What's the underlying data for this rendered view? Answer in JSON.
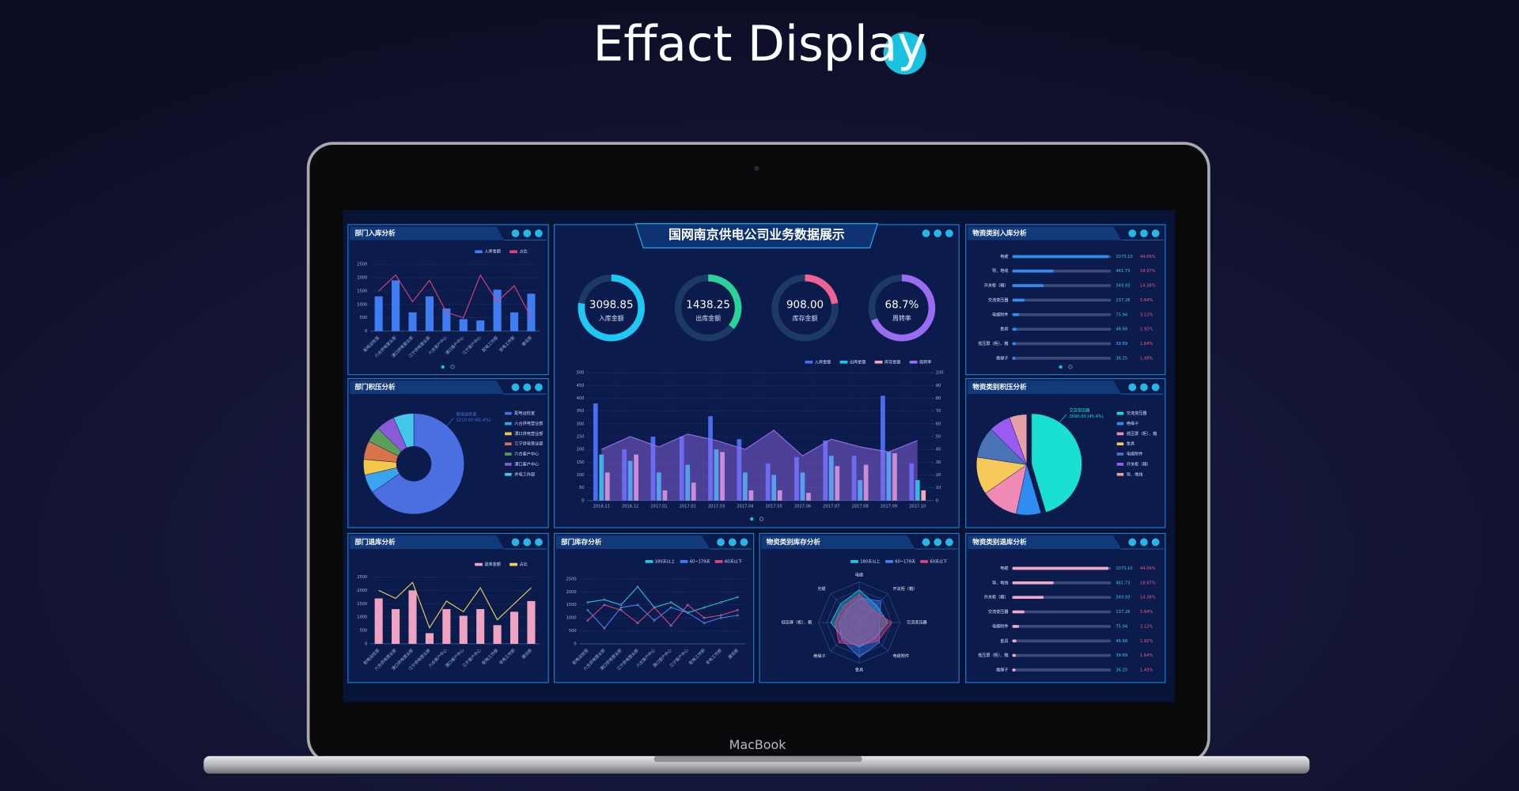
{
  "page": {
    "title": "Effact Display",
    "laptop_label": "MacBook"
  },
  "dashboard": {
    "title": "国网南京供电公司业务数据展示"
  },
  "chart_data": [
    {
      "type": "bar_line",
      "title": "部门入库分析",
      "categories": [
        "配电运检室",
        "六合供电营业部",
        "溧口供电营业部",
        "江宁供电营业部",
        "六合客户中心",
        "溧口客户中心",
        "江宁客户中心",
        "配电工作部",
        "变电工作部",
        "建设部"
      ],
      "series": [
        {
          "name": "入库金额",
          "color": "#3f7ef2",
          "kind": "bar",
          "values": [
            1300,
            1900,
            700,
            1300,
            850,
            450,
            400,
            1550,
            700,
            1400
          ]
        },
        {
          "name": "占比",
          "color": "#e2407a",
          "kind": "line",
          "values": [
            1500,
            2100,
            1100,
            1900,
            700,
            500,
            2100,
            1100,
            1700,
            500
          ]
        }
      ],
      "ylim": [
        0,
        2500
      ],
      "yticks": [
        0,
        500,
        1000,
        1500,
        2000,
        2500
      ]
    },
    {
      "type": "donut",
      "title": "部门积压分析",
      "categories": [
        "配电运检室",
        "六合供电营业部",
        "溧口供电营业部",
        "江宁供电营业部",
        "六合客户中心",
        "溧口客户中心",
        "并电工作部"
      ],
      "values": [
        65.4,
        6,
        5,
        6,
        5,
        6,
        6.6
      ],
      "colors": [
        "#4b6fe0",
        "#3aa3f0",
        "#f3c84a",
        "#d8734c",
        "#5aa05a",
        "#8a5bd8",
        "#45c7ec"
      ],
      "annotation": [
        "配电运检室",
        "5210.00 (65.4%)"
      ]
    },
    {
      "type": "bar_line",
      "title": "部门退库分析",
      "categories": [
        "配电运检室",
        "六合供电营业部",
        "溧口供电营业部",
        "江宁供电营业部",
        "六合客户中心",
        "溧口客户中心",
        "江宁客户中心",
        "配电工作部",
        "变电工作部",
        "建设部"
      ],
      "series": [
        {
          "name": "退库金额",
          "color": "#f0a3c0",
          "kind": "bar",
          "values": [
            1700,
            1300,
            2000,
            400,
            1300,
            1050,
            1300,
            700,
            1200,
            1600
          ]
        },
        {
          "name": "占比",
          "color": "#f2d45a",
          "kind": "line",
          "values": [
            2000,
            1700,
            2300,
            600,
            1600,
            1200,
            2100,
            900,
            1500,
            2100
          ]
        }
      ],
      "ylim": [
        0,
        2500
      ],
      "yticks": [
        0,
        500,
        1000,
        1500,
        2000,
        2500
      ]
    },
    {
      "type": "gauge",
      "categories": [
        "入库金额",
        "出库金额",
        "库存金额",
        "周转率"
      ],
      "values": [
        3098.85,
        1438.25,
        908.0,
        68.7
      ],
      "value_labels": [
        "3098.85",
        "1438.25",
        "908.00",
        "68.7%"
      ],
      "lims": [
        [
          0,
          4000
        ],
        [
          0,
          4000
        ],
        [
          0,
          4000
        ],
        [
          0,
          100
        ]
      ],
      "colors": [
        "#1ec8f2",
        "#2ad39a",
        "#f06292",
        "#9a6cf2"
      ]
    },
    {
      "type": "bar_line",
      "categories": [
        "2016.11",
        "2016.12",
        "2017.01",
        "2017.02",
        "2017.03",
        "2017.04",
        "2017.05",
        "2017.06",
        "2017.07",
        "2017.08",
        "2017.09",
        "2017.10"
      ],
      "series": [
        {
          "name": "入库金额",
          "color": "#4a6cf0",
          "kind": "bar",
          "values": [
            380,
            200,
            250,
            250,
            330,
            240,
            145,
            170,
            235,
            175,
            410,
            145
          ]
        },
        {
          "name": "出库金额",
          "color": "#1fc9e6",
          "kind": "bar",
          "values": [
            180,
            155,
            110,
            140,
            200,
            110,
            100,
            110,
            175,
            80,
            190,
            80
          ]
        },
        {
          "name": "库存金额",
          "color": "#f2a6bd",
          "kind": "bar",
          "values": [
            110,
            180,
            40,
            70,
            190,
            40,
            40,
            30,
            135,
            140,
            185,
            40
          ]
        },
        {
          "name": "周转率",
          "color": "#9a6cf2",
          "kind": "line",
          "axis": "y2",
          "area": true,
          "values": [
            40,
            50,
            42,
            52,
            47,
            40,
            55,
            35,
            48,
            42,
            38,
            47
          ]
        }
      ],
      "ylim": [
        0,
        500
      ],
      "yticks": [
        0,
        50,
        100,
        150,
        200,
        250,
        300,
        350,
        400,
        450,
        500
      ],
      "y2lim": [
        0,
        100
      ],
      "y2ticks": [
        0,
        10,
        20,
        30,
        40,
        50,
        60,
        70,
        80,
        90,
        100
      ]
    },
    {
      "type": "line",
      "title": "部门库存分析",
      "categories": [
        "配电运检室",
        "六合供电营业部",
        "溧口供电营业部",
        "江宁供电营业部",
        "六合客户中心",
        "溧口客户中心",
        "江宁客户中心",
        "配电工作部",
        "变电工作部",
        "建设部"
      ],
      "series": [
        {
          "name": "180天以上",
          "color": "#1fc9e6",
          "kind": "line",
          "values": [
            1600,
            1700,
            1500,
            2200,
            1400,
            1600,
            1200,
            1400,
            1600,
            1800
          ]
        },
        {
          "name": "60~179天",
          "color": "#3f7ef2",
          "kind": "line",
          "values": [
            1300,
            600,
            1400,
            1500,
            900,
            1400,
            1200,
            800,
            1000,
            1100
          ]
        },
        {
          "name": "60天以下",
          "color": "#e2407a",
          "kind": "line",
          "values": [
            900,
            1500,
            1300,
            800,
            1400,
            700,
            1500,
            1000,
            1100,
            1300
          ]
        }
      ],
      "ylim": [
        0,
        2500
      ],
      "yticks": [
        0,
        500,
        1000,
        1500,
        2000,
        2500
      ]
    },
    {
      "type": "radar",
      "title": "物资类别库存分析",
      "categories": [
        "电缆",
        "开关柜（箱）",
        "交流变压器",
        "电缆附件",
        "金具",
        "绝缘子",
        "低压屏（柜）、箱",
        "光缆"
      ],
      "series": [
        {
          "name": "180天以上",
          "color": "#1fc9e6",
          "values": [
            80,
            60,
            70,
            55,
            60,
            55,
            70,
            65
          ]
        },
        {
          "name": "60~179天",
          "color": "#3f7ef2",
          "values": [
            60,
            75,
            50,
            70,
            85,
            60,
            50,
            45
          ]
        },
        {
          "name": "60天以下",
          "color": "#e2407a",
          "values": [
            70,
            45,
            80,
            65,
            55,
            70,
            60,
            55
          ]
        }
      ],
      "rlim": [
        0,
        100
      ]
    },
    {
      "type": "hbar",
      "title": "物资类别入库分析",
      "categories": [
        "电缆",
        "导、地线",
        "开关柜（箱）",
        "交流变压器",
        "电缆附件",
        "金具",
        "低压屏（柜）、箱",
        "绝缘子"
      ],
      "values": [
        1073.1,
        461.73,
        349.93,
        137.28,
        75.94,
        46.68,
        39.89,
        36.25
      ],
      "value_labels": [
        "1073.10",
        "461.73",
        "349.93",
        "137.28",
        "75.94",
        "46.68",
        "39.89",
        "36.25"
      ],
      "shares": [
        44.09,
        18.97,
        14.38,
        5.64,
        3.12,
        1.92,
        1.64,
        1.49
      ],
      "share_labels": [
        "44.09%",
        "18.97%",
        "14.38%",
        "5.64%",
        "3.12%",
        "1.92%",
        "1.64%",
        "1.49%"
      ],
      "xlim": [
        0,
        1100
      ],
      "color": "#2f8cf0"
    },
    {
      "type": "pie",
      "title": "物资类别积压分析",
      "categories": [
        "交流变压器",
        "绝缘子",
        "低压屏（柜）、箱",
        "金具",
        "电缆附件",
        "开关柜（箱）",
        "导、地线"
      ],
      "values": [
        45.4,
        8,
        12,
        12,
        10,
        7,
        5.6
      ],
      "colors": [
        "#19e0d0",
        "#2f8cf0",
        "#f08ab4",
        "#f6c95a",
        "#4a73b8",
        "#9a5cf0",
        "#e8a0a8"
      ],
      "annotation": [
        "交流变压器",
        "3090.00 (45.4%)"
      ]
    },
    {
      "type": "hbar",
      "title": "物资类别退库分析",
      "categories": [
        "电缆",
        "导、地线",
        "开关柜（箱）",
        "交流变压器",
        "电缆附件",
        "金具",
        "低压屏（柜）、箱",
        "绝缘子"
      ],
      "values": [
        1073.1,
        461.73,
        349.93,
        137.28,
        75.94,
        46.68,
        39.89,
        36.25
      ],
      "value_labels": [
        "1073.10",
        "461.73",
        "349.93",
        "137.28",
        "75.94",
        "46.68",
        "39.89",
        "36.25"
      ],
      "shares": [
        44.09,
        18.97,
        14.38,
        5.64,
        3.12,
        1.92,
        1.64,
        1.49
      ],
      "share_labels": [
        "44.09%",
        "18.97%",
        "14.38%",
        "5.64%",
        "3.12%",
        "1.92%",
        "1.64%",
        "1.49%"
      ],
      "xlim": [
        0,
        1100
      ],
      "color": "#f2a6c8"
    }
  ]
}
